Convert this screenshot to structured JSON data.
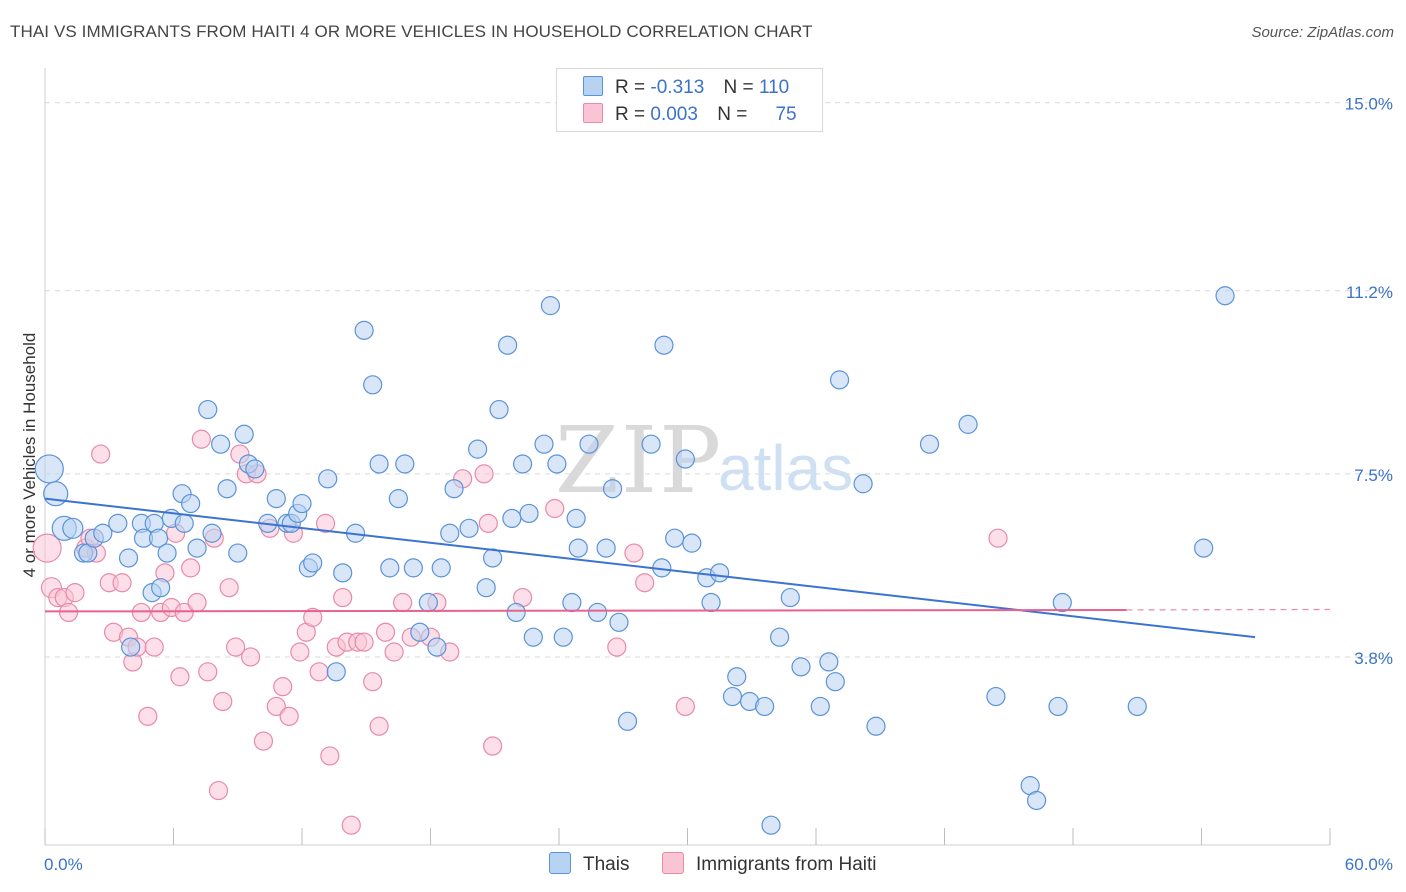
{
  "title": "THAI VS IMMIGRANTS FROM HAITI 4 OR MORE VEHICLES IN HOUSEHOLD CORRELATION CHART",
  "source": "Source: ZipAtlas.com",
  "watermark": {
    "zip": "ZIP",
    "atlas": "atlas"
  },
  "legend": {
    "r_label": "R =",
    "n_label": "N =",
    "entries": [
      {
        "r": "-0.313",
        "n": "110"
      },
      {
        "r": "0.003",
        "n": "75"
      }
    ]
  },
  "chart_data": {
    "type": "scatter",
    "title": "THAI VS IMMIGRANTS FROM HAITI 4 OR MORE VEHICLES IN HOUSEHOLD CORRELATION CHART",
    "xlabel": "",
    "ylabel": "4 or more Vehicles in Household",
    "xlim": [
      0,
      60
    ],
    "ylim": [
      0,
      15.5
    ],
    "x_tick_labels": [
      "0.0%",
      "60.0%"
    ],
    "y_ticks": [
      3.8,
      7.5,
      11.2,
      15.0
    ],
    "y_tick_labels": [
      "3.8%",
      "7.5%",
      "11.2%",
      "15.0%"
    ],
    "legend_position": "top-center",
    "colors": {
      "thais_fill": "#b8d2f2",
      "thais_stroke": "#5b93d8",
      "thais_line": "#3b73d0",
      "haiti_fill": "#f9c5d5",
      "haiti_stroke": "#e88aa8",
      "haiti_line": "#e8628e",
      "value_text": "#3b73c7",
      "grid": "#d9d9d9"
    },
    "series": [
      {
        "name": "Thais",
        "trend": {
          "x": [
            0,
            56.5
          ],
          "y": [
            7.0,
            4.2
          ]
        },
        "points": [
          [
            0.2,
            7.6,
            14
          ],
          [
            0.5,
            7.1,
            12
          ],
          [
            0.9,
            6.4,
            12
          ],
          [
            1.3,
            6.4,
            10
          ],
          [
            1.8,
            5.9,
            9
          ],
          [
            2.0,
            5.9,
            9
          ],
          [
            2.3,
            6.2,
            9
          ],
          [
            2.7,
            6.3,
            9
          ],
          [
            3.4,
            6.5,
            9
          ],
          [
            3.9,
            5.8,
            9
          ],
          [
            4.0,
            4.0,
            9
          ],
          [
            4.5,
            6.5,
            9
          ],
          [
            4.6,
            6.2,
            9
          ],
          [
            5.0,
            5.1,
            9
          ],
          [
            5.1,
            6.5,
            9
          ],
          [
            5.3,
            6.2,
            9
          ],
          [
            5.7,
            5.9,
            9
          ],
          [
            5.4,
            5.2,
            9
          ],
          [
            5.9,
            6.6,
            9
          ],
          [
            6.4,
            7.1,
            9
          ],
          [
            6.5,
            6.5,
            9
          ],
          [
            6.8,
            6.9,
            9
          ],
          [
            7.1,
            6.0,
            9
          ],
          [
            7.6,
            8.8,
            9
          ],
          [
            7.8,
            6.3,
            9
          ],
          [
            8.2,
            8.1,
            9
          ],
          [
            8.5,
            7.2,
            9
          ],
          [
            9.0,
            5.9,
            9
          ],
          [
            9.3,
            8.3,
            9
          ],
          [
            9.5,
            7.7,
            9
          ],
          [
            9.8,
            7.6,
            9
          ],
          [
            10.4,
            6.5,
            9
          ],
          [
            10.8,
            7.0,
            9
          ],
          [
            11.3,
            6.5,
            9
          ],
          [
            11.5,
            6.5,
            9
          ],
          [
            11.8,
            6.7,
            9
          ],
          [
            12.0,
            6.9,
            9
          ],
          [
            12.3,
            5.6,
            9
          ],
          [
            12.5,
            5.7,
            9
          ],
          [
            13.2,
            7.4,
            9
          ],
          [
            13.6,
            3.5,
            9
          ],
          [
            13.9,
            5.5,
            9
          ],
          [
            14.5,
            6.3,
            9
          ],
          [
            14.9,
            10.4,
            9
          ],
          [
            15.3,
            9.3,
            9
          ],
          [
            15.6,
            7.7,
            9
          ],
          [
            16.1,
            5.6,
            9
          ],
          [
            16.5,
            7.0,
            9
          ],
          [
            16.8,
            7.7,
            9
          ],
          [
            17.2,
            5.6,
            9
          ],
          [
            17.5,
            4.3,
            9
          ],
          [
            17.9,
            4.9,
            9
          ],
          [
            18.3,
            4.0,
            9
          ],
          [
            18.5,
            5.6,
            9
          ],
          [
            18.9,
            6.3,
            9
          ],
          [
            19.1,
            7.2,
            9
          ],
          [
            19.8,
            6.4,
            9
          ],
          [
            20.2,
            8.0,
            9
          ],
          [
            20.6,
            5.2,
            9
          ],
          [
            20.9,
            5.8,
            9
          ],
          [
            21.2,
            8.8,
            9
          ],
          [
            21.6,
            10.1,
            9
          ],
          [
            21.8,
            6.6,
            9
          ],
          [
            22.0,
            4.7,
            9
          ],
          [
            22.3,
            7.7,
            9
          ],
          [
            22.6,
            6.7,
            9
          ],
          [
            22.8,
            4.2,
            9
          ],
          [
            23.3,
            8.1,
            9
          ],
          [
            23.6,
            10.9,
            9
          ],
          [
            23.9,
            7.7,
            9
          ],
          [
            24.2,
            4.2,
            9
          ],
          [
            24.6,
            4.9,
            9
          ],
          [
            24.8,
            6.6,
            9
          ],
          [
            24.9,
            6.0,
            9
          ],
          [
            25.4,
            8.1,
            9
          ],
          [
            25.8,
            4.7,
            9
          ],
          [
            26.2,
            6.0,
            9
          ],
          [
            26.5,
            7.2,
            9
          ],
          [
            26.8,
            4.5,
            9
          ],
          [
            27.2,
            2.5,
            9
          ],
          [
            28.3,
            8.1,
            9
          ],
          [
            28.8,
            5.6,
            9
          ],
          [
            28.9,
            10.1,
            9
          ],
          [
            29.4,
            6.2,
            9
          ],
          [
            29.9,
            7.8,
            9
          ],
          [
            30.2,
            6.1,
            9
          ],
          [
            30.9,
            5.4,
            9
          ],
          [
            31.1,
            4.9,
            9
          ],
          [
            31.5,
            5.5,
            9
          ],
          [
            32.1,
            3.0,
            9
          ],
          [
            32.3,
            3.4,
            9
          ],
          [
            32.9,
            2.9,
            9
          ],
          [
            33.6,
            2.8,
            9
          ],
          [
            33.9,
            0.4,
            9
          ],
          [
            34.3,
            4.2,
            9
          ],
          [
            34.8,
            5.0,
            9
          ],
          [
            35.3,
            3.6,
            9
          ],
          [
            36.2,
            2.8,
            9
          ],
          [
            36.6,
            3.7,
            9
          ],
          [
            36.9,
            3.3,
            9
          ],
          [
            37.1,
            9.4,
            9
          ],
          [
            38.2,
            7.3,
            9
          ],
          [
            38.8,
            2.4,
            9
          ],
          [
            41.3,
            8.1,
            9
          ],
          [
            43.1,
            8.5,
            9
          ],
          [
            44.4,
            3.0,
            9
          ],
          [
            46.0,
            1.2,
            9
          ],
          [
            46.3,
            0.9,
            9
          ],
          [
            47.3,
            2.8,
            9
          ],
          [
            47.5,
            4.9,
            9
          ],
          [
            51.0,
            2.8,
            9
          ],
          [
            54.1,
            6.0,
            9
          ],
          [
            55.1,
            11.1,
            9
          ]
        ]
      },
      {
        "name": "Immigrants from Haiti",
        "trend": {
          "x": [
            0,
            50.5
          ],
          "y": [
            4.72,
            4.75
          ]
        },
        "trend_dashed": {
          "x": [
            50.5,
            60
          ],
          "y": [
            4.75,
            4.76
          ]
        },
        "points": [
          [
            0.1,
            6.0,
            14
          ],
          [
            0.3,
            5.2,
            10
          ],
          [
            0.6,
            5.0,
            9
          ],
          [
            0.9,
            5.0,
            9
          ],
          [
            1.1,
            4.7,
            9
          ],
          [
            1.4,
            5.1,
            9
          ],
          [
            1.9,
            6.0,
            9
          ],
          [
            2.1,
            6.2,
            9
          ],
          [
            2.4,
            5.9,
            9
          ],
          [
            2.6,
            7.9,
            9
          ],
          [
            3.0,
            5.3,
            9
          ],
          [
            3.2,
            4.3,
            9
          ],
          [
            3.6,
            5.3,
            9
          ],
          [
            3.9,
            4.2,
            9
          ],
          [
            4.1,
            3.7,
            9
          ],
          [
            4.3,
            4.0,
            9
          ],
          [
            4.5,
            4.7,
            9
          ],
          [
            4.8,
            2.6,
            9
          ],
          [
            5.1,
            4.0,
            9
          ],
          [
            5.4,
            4.7,
            9
          ],
          [
            5.6,
            5.5,
            9
          ],
          [
            5.9,
            4.8,
            9
          ],
          [
            6.1,
            6.3,
            9
          ],
          [
            6.3,
            3.4,
            9
          ],
          [
            6.5,
            4.7,
            9
          ],
          [
            6.8,
            5.6,
            9
          ],
          [
            7.1,
            4.9,
            9
          ],
          [
            7.3,
            8.2,
            9
          ],
          [
            7.6,
            3.5,
            9
          ],
          [
            7.9,
            6.2,
            9
          ],
          [
            8.1,
            1.1,
            9
          ],
          [
            8.3,
            2.9,
            9
          ],
          [
            8.6,
            5.2,
            9
          ],
          [
            8.9,
            4.0,
            9
          ],
          [
            9.1,
            7.9,
            9
          ],
          [
            9.4,
            7.5,
            9
          ],
          [
            9.6,
            3.8,
            9
          ],
          [
            9.9,
            7.5,
            9
          ],
          [
            10.2,
            2.1,
            9
          ],
          [
            10.5,
            6.4,
            9
          ],
          [
            10.8,
            2.8,
            9
          ],
          [
            11.1,
            3.2,
            9
          ],
          [
            11.4,
            2.6,
            9
          ],
          [
            11.6,
            6.3,
            9
          ],
          [
            11.9,
            3.9,
            9
          ],
          [
            12.2,
            4.3,
            9
          ],
          [
            12.5,
            4.6,
            9
          ],
          [
            12.8,
            3.5,
            9
          ],
          [
            13.1,
            6.5,
            9
          ],
          [
            13.3,
            1.8,
            9
          ],
          [
            13.6,
            4.0,
            9
          ],
          [
            13.9,
            5.0,
            9
          ],
          [
            14.1,
            4.1,
            9
          ],
          [
            14.3,
            0.4,
            9
          ],
          [
            14.6,
            4.1,
            9
          ],
          [
            14.9,
            4.1,
            9
          ],
          [
            15.3,
            3.3,
            9
          ],
          [
            15.6,
            2.4,
            9
          ],
          [
            15.9,
            4.3,
            9
          ],
          [
            16.3,
            3.9,
            9
          ],
          [
            16.7,
            4.9,
            9
          ],
          [
            17.1,
            4.2,
            9
          ],
          [
            18.0,
            4.2,
            9
          ],
          [
            18.3,
            4.9,
            9
          ],
          [
            18.9,
            3.9,
            9
          ],
          [
            19.5,
            7.4,
            9
          ],
          [
            20.5,
            7.5,
            9
          ],
          [
            20.7,
            6.5,
            9
          ],
          [
            20.9,
            2.0,
            9
          ],
          [
            22.3,
            5.0,
            9
          ],
          [
            23.8,
            6.8,
            9
          ],
          [
            26.7,
            4.0,
            9
          ],
          [
            27.5,
            5.9,
            9
          ],
          [
            28.0,
            5.3,
            9
          ],
          [
            29.9,
            2.8,
            9
          ],
          [
            44.5,
            6.2,
            9
          ]
        ]
      }
    ]
  },
  "bottom_legend": [
    "Thais",
    "Immigrants from Haiti"
  ]
}
